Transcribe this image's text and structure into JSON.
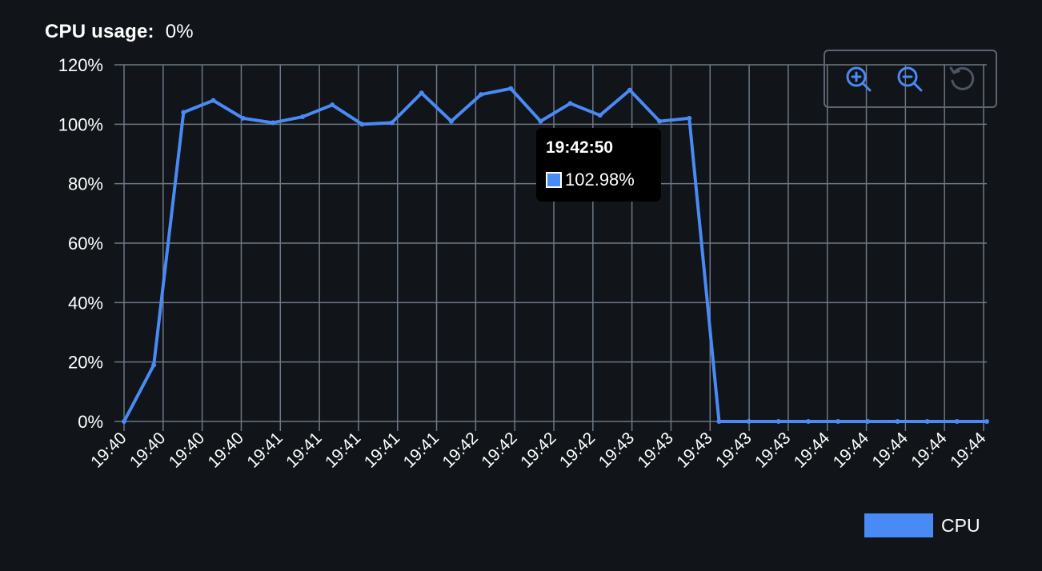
{
  "header": {
    "label": "CPU usage:",
    "value": "0%"
  },
  "toolbar": {
    "zoom_in": "zoom-in-icon",
    "zoom_out": "zoom-out-icon",
    "reset": "reset-zoom-icon"
  },
  "tooltip": {
    "time": "19:42:50",
    "value": "102.98%"
  },
  "legend": {
    "label": "CPU",
    "color": "#4a8af4"
  },
  "colors": {
    "background": "#111419",
    "grid": "#6b7886",
    "line": "#4a8af4",
    "text": "#ffffff"
  },
  "chart_data": {
    "type": "line",
    "title": "",
    "xlabel": "",
    "ylabel": "",
    "ylim": [
      0,
      120
    ],
    "y_ticks": [
      "0%",
      "20%",
      "40%",
      "60%",
      "80%",
      "100%",
      "120%"
    ],
    "x_ticks": [
      "19:40",
      "19:40",
      "19:40",
      "19:40",
      "19:41",
      "19:41",
      "19:41",
      "19:41",
      "19:41",
      "19:42",
      "19:42",
      "19:42",
      "19:42",
      "19:43",
      "19:43",
      "19:43",
      "19:43",
      "19:43",
      "19:44",
      "19:44",
      "19:44",
      "19:44",
      "19:44"
    ],
    "grid": true,
    "legend_position": "bottom-right",
    "series": [
      {
        "name": "CPU",
        "values": [
          0,
          19,
          104,
          108,
          102,
          100.5,
          102.5,
          106.5,
          100,
          100.5,
          110.5,
          101,
          110,
          112,
          101,
          107,
          103,
          111.5,
          101,
          102,
          0,
          0,
          0,
          0,
          0,
          0,
          0,
          0,
          0,
          0
        ]
      }
    ]
  }
}
